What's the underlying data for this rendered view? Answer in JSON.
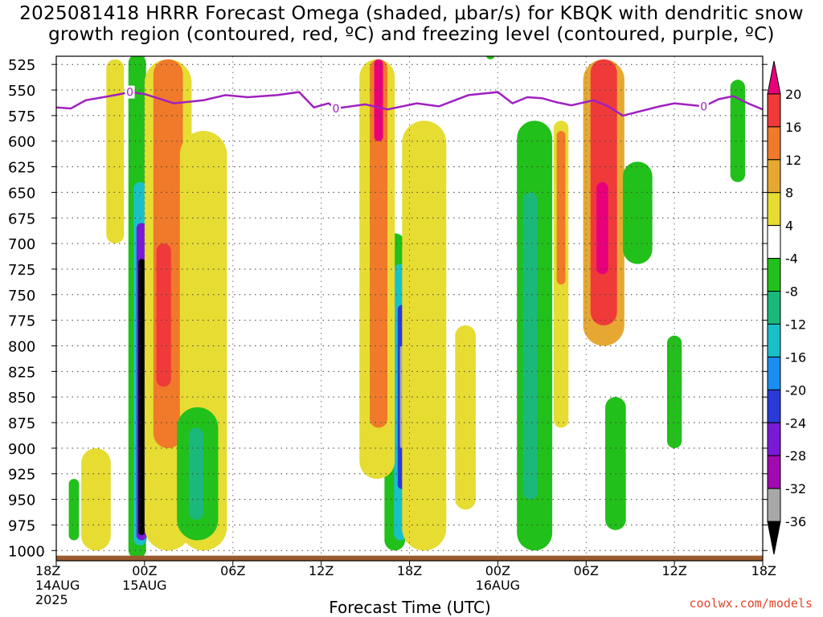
{
  "title": {
    "line1": "2025081418 HRRR Forecast Omega (shaded, μbar/s) for KBQK with dendritic snow",
    "line2": "growth region (contoured, red, ºC) and freezing level (contoured, purple, ºC)"
  },
  "footer": {
    "url": "coolwx.com/models"
  },
  "colors": {
    "freezing_level": "#a020c0",
    "ground": "#9b5a2e",
    "grid": "#404040"
  },
  "chart_data": {
    "type": "heatmap",
    "title": "2025081418 HRRR Forecast Omega (shaded, μbar/s) for KBQK with dendritic snow growth region (contoured, red, ºC) and freezing level (contoured, purple, ºC)",
    "xlabel": "Forecast Time (UTC)",
    "ylabel": "",
    "x_ticks": [
      {
        "hour": 0,
        "lines": [
          "18Z",
          "14AUG",
          "2025"
        ]
      },
      {
        "hour": 6,
        "lines": [
          "00Z",
          "15AUG"
        ]
      },
      {
        "hour": 12,
        "lines": [
          "06Z"
        ]
      },
      {
        "hour": 18,
        "lines": [
          "12Z"
        ]
      },
      {
        "hour": 24,
        "lines": [
          "18Z"
        ]
      },
      {
        "hour": 30,
        "lines": [
          "00Z",
          "16AUG"
        ]
      },
      {
        "hour": 36,
        "lines": [
          "06Z"
        ]
      },
      {
        "hour": 42,
        "lines": [
          "12Z"
        ]
      },
      {
        "hour": 48,
        "lines": [
          "18Z"
        ]
      }
    ],
    "xlim_hours": [
      0,
      48
    ],
    "y_levels": [
      525,
      550,
      575,
      600,
      625,
      650,
      675,
      700,
      725,
      750,
      775,
      800,
      825,
      850,
      875,
      900,
      925,
      950,
      975,
      1000
    ],
    "ylim_hpa": [
      517,
      1010
    ],
    "colorbar": {
      "labels": [
        "20",
        "16",
        "12",
        "8",
        "4",
        "-4",
        "-8",
        "-12",
        "-16",
        "-20",
        "-24",
        "-28",
        "-32",
        "-36"
      ],
      "bins": [
        {
          "color": "#e8007a"
        },
        {
          "color": "#f03a3a"
        },
        {
          "color": "#f07a2a"
        },
        {
          "color": "#e6a832"
        },
        {
          "color": "#e6dc32"
        },
        {
          "color": "#ffffff"
        },
        {
          "color": "#22c01a"
        },
        {
          "color": "#1ab87a"
        },
        {
          "color": "#1ac0c8"
        },
        {
          "color": "#1a8ef0"
        },
        {
          "color": "#2a3ad8"
        },
        {
          "color": "#7a1ad8"
        },
        {
          "color": "#a00ab0"
        },
        {
          "color": "#a8a8a8"
        },
        {
          "color": "#000000"
        }
      ]
    },
    "freezing_level": {
      "label": "0",
      "label_hours": [
        5,
        19,
        44
      ],
      "points": [
        {
          "hour": 0,
          "p": 567
        },
        {
          "hour": 1,
          "p": 568
        },
        {
          "hour": 2,
          "p": 560
        },
        {
          "hour": 4,
          "p": 555
        },
        {
          "hour": 5,
          "p": 552
        },
        {
          "hour": 6,
          "p": 554
        },
        {
          "hour": 8,
          "p": 563
        },
        {
          "hour": 10,
          "p": 560
        },
        {
          "hour": 11.5,
          "p": 555
        },
        {
          "hour": 13,
          "p": 557
        },
        {
          "hour": 15,
          "p": 555
        },
        {
          "hour": 16.5,
          "p": 552
        },
        {
          "hour": 17.5,
          "p": 567
        },
        {
          "hour": 18.5,
          "p": 563
        },
        {
          "hour": 19,
          "p": 568
        },
        {
          "hour": 21,
          "p": 564
        },
        {
          "hour": 22.5,
          "p": 569
        },
        {
          "hour": 24.5,
          "p": 563
        },
        {
          "hour": 26,
          "p": 566
        },
        {
          "hour": 28,
          "p": 555
        },
        {
          "hour": 30,
          "p": 552
        },
        {
          "hour": 31,
          "p": 563
        },
        {
          "hour": 32,
          "p": 557
        },
        {
          "hour": 33,
          "p": 558
        },
        {
          "hour": 34,
          "p": 562
        },
        {
          "hour": 35,
          "p": 565
        },
        {
          "hour": 36.5,
          "p": 560
        },
        {
          "hour": 37.5,
          "p": 566
        },
        {
          "hour": 38.5,
          "p": 575
        },
        {
          "hour": 41,
          "p": 566
        },
        {
          "hour": 42,
          "p": 563
        },
        {
          "hour": 44,
          "p": 566
        },
        {
          "hour": 45,
          "p": 559
        },
        {
          "hour": 46,
          "p": 556
        },
        {
          "hour": 47,
          "p": 563
        },
        {
          "hour": 48,
          "p": 569
        }
      ]
    },
    "omega_features": [
      {
        "hour": 5.5,
        "p1": 515,
        "p2": 1008,
        "w": 0.6,
        "color": "#22c01a"
      },
      {
        "hour": 5.7,
        "p1": 640,
        "p2": 995,
        "w": 0.45,
        "color": "#1ac0c8"
      },
      {
        "hour": 5.8,
        "p1": 680,
        "p2": 990,
        "w": 0.35,
        "color": "#7a1ad8"
      },
      {
        "hour": 5.8,
        "p1": 715,
        "p2": 985,
        "w": 0.22,
        "color": "#000000"
      },
      {
        "hour": 7.6,
        "p1": 520,
        "p2": 1000,
        "w": 1.6,
        "color": "#e6dc32"
      },
      {
        "hour": 7.6,
        "p1": 520,
        "p2": 900,
        "w": 1.0,
        "color": "#f07a2a"
      },
      {
        "hour": 7.3,
        "p1": 700,
        "p2": 840,
        "w": 0.5,
        "color": "#f03a3a"
      },
      {
        "hour": 23.0,
        "p1": 690,
        "p2": 1000,
        "w": 0.7,
        "color": "#22c01a"
      },
      {
        "hour": 23.4,
        "p1": 720,
        "p2": 990,
        "w": 0.45,
        "color": "#1ac0c8"
      },
      {
        "hour": 23.5,
        "p1": 760,
        "p2": 940,
        "w": 0.3,
        "color": "#2a3ad8"
      },
      {
        "hour": 23.5,
        "p1": 800,
        "p2": 900,
        "w": 0.15,
        "color": "#a8a8a8"
      },
      {
        "hour": 21.8,
        "p1": 520,
        "p2": 930,
        "w": 1.2,
        "color": "#e6dc32"
      },
      {
        "hour": 21.9,
        "p1": 520,
        "p2": 880,
        "w": 0.6,
        "color": "#f07a2a"
      },
      {
        "hour": 21.9,
        "p1": 520,
        "p2": 600,
        "w": 0.3,
        "color": "#e8007a"
      },
      {
        "hour": 37.2,
        "p1": 520,
        "p2": 800,
        "w": 1.4,
        "color": "#e6a832"
      },
      {
        "hour": 37.2,
        "p1": 520,
        "p2": 780,
        "w": 0.9,
        "color": "#f03a3a"
      },
      {
        "hour": 37.1,
        "p1": 640,
        "p2": 730,
        "w": 0.4,
        "color": "#e8007a"
      },
      {
        "hour": 32.5,
        "p1": 580,
        "p2": 1000,
        "w": 1.2,
        "color": "#22c01a"
      },
      {
        "hour": 32.2,
        "p1": 650,
        "p2": 950,
        "w": 0.5,
        "color": "#1ab87a"
      },
      {
        "hour": 39.5,
        "p1": 620,
        "p2": 720,
        "w": 1.0,
        "color": "#22c01a"
      },
      {
        "hour": 46.3,
        "p1": 540,
        "p2": 640,
        "w": 0.5,
        "color": "#22c01a"
      },
      {
        "hour": 42.0,
        "p1": 790,
        "p2": 900,
        "w": 0.5,
        "color": "#22c01a"
      },
      {
        "hour": 38.0,
        "p1": 850,
        "p2": 980,
        "w": 0.7,
        "color": "#22c01a"
      },
      {
        "hour": 10.0,
        "p1": 590,
        "p2": 1000,
        "w": 1.6,
        "color": "#e6dc32"
      },
      {
        "hour": 2.7,
        "p1": 900,
        "p2": 1000,
        "w": 1.0,
        "color": "#e6dc32"
      },
      {
        "hour": 1.2,
        "p1": 930,
        "p2": 990,
        "w": 0.35,
        "color": "#22c01a"
      },
      {
        "hour": 4.0,
        "p1": 520,
        "p2": 700,
        "w": 0.6,
        "color": "#e6dc32"
      },
      {
        "hour": 9.6,
        "p1": 860,
        "p2": 990,
        "w": 1.4,
        "color": "#22c01a"
      },
      {
        "hour": 9.5,
        "p1": 880,
        "p2": 970,
        "w": 0.5,
        "color": "#1ab87a"
      },
      {
        "hour": 25.0,
        "p1": 580,
        "p2": 1000,
        "w": 1.5,
        "color": "#e6dc32"
      },
      {
        "hour": 27.8,
        "p1": 780,
        "p2": 960,
        "w": 0.7,
        "color": "#e6dc32"
      },
      {
        "hour": 34.3,
        "p1": 580,
        "p2": 880,
        "w": 0.5,
        "color": "#e6dc32"
      },
      {
        "hour": 34.3,
        "p1": 590,
        "p2": 740,
        "w": 0.3,
        "color": "#f07a2a"
      },
      {
        "hour": 29.5,
        "p1": 500,
        "p2": 520,
        "w": 0.3,
        "color": "#22c01a"
      }
    ]
  }
}
